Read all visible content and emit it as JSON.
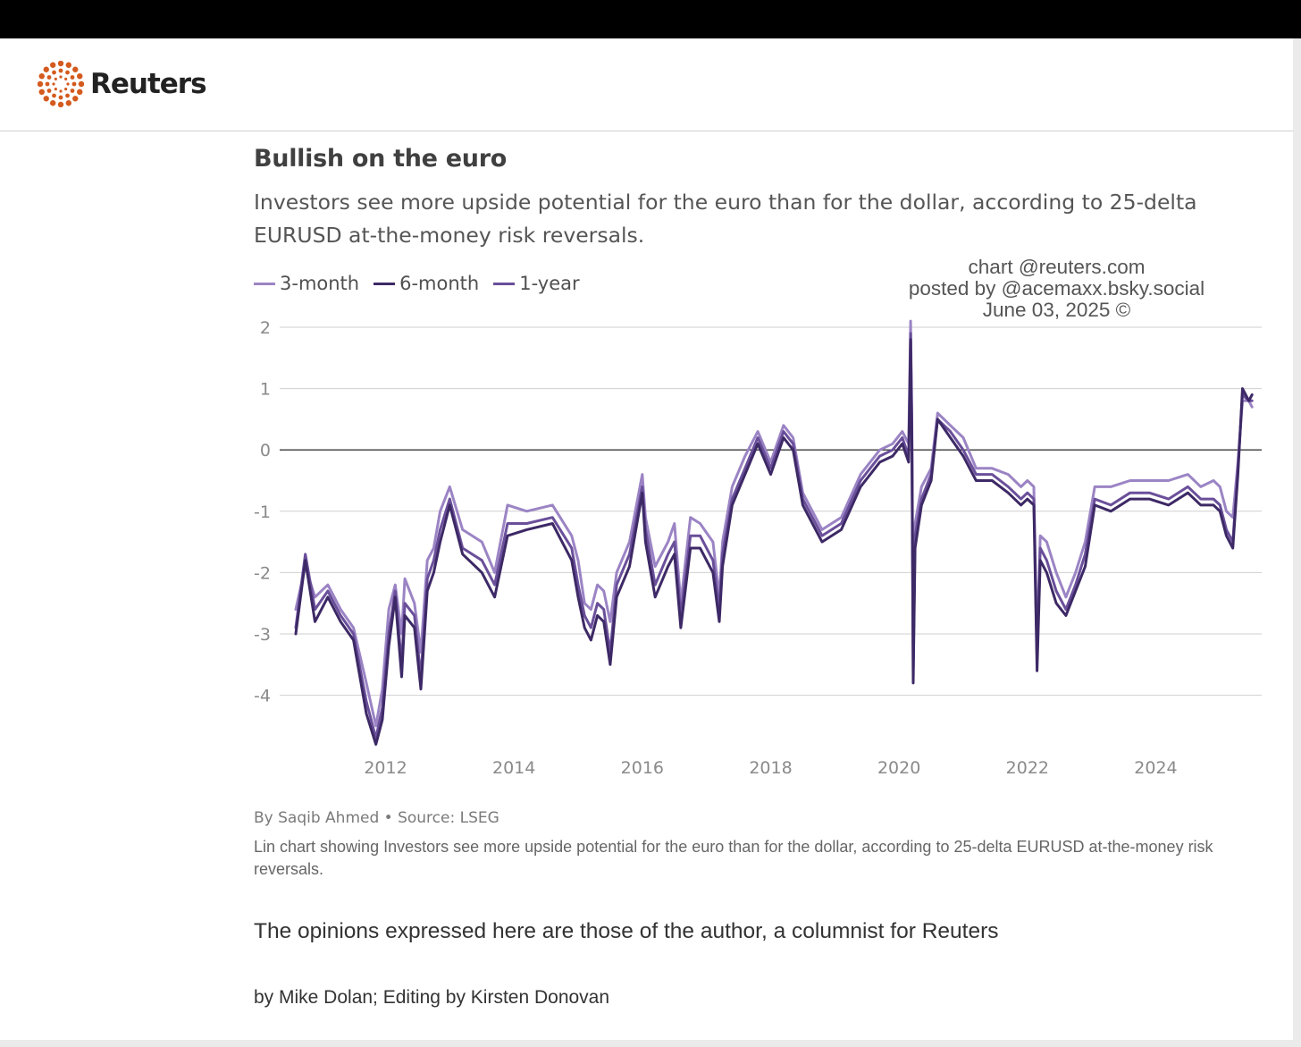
{
  "header": {
    "brand": "Reuters",
    "brand_color": "#d45a1e"
  },
  "chart": {
    "title": "Bullish on the euro",
    "subtitle": "Investors see more upside potential for the euro than for the dollar, according to 25-delta EURUSD at-the-money risk reversals.",
    "legend": [
      {
        "label": "3-month",
        "color": "#9b84c4"
      },
      {
        "label": "6-month",
        "color": "#3d2966"
      },
      {
        "label": "1-year",
        "color": "#6a4f9a"
      }
    ],
    "watermark": [
      "chart @reuters.com",
      "posted by @acemaxx.bsky.social",
      "June 03, 2025 ©"
    ],
    "credit": "By Saqib Ahmed • Source: LSEG",
    "caption": "Lin chart showing Investors see more upside potential for the euro than for the dollar, according to 25-delta EURUSD at-the-money risk reversals."
  },
  "article": {
    "opinion": "The opinions expressed here are those of the author, a columnist for Reuters",
    "byline": "by Mike Dolan; Editing by Kirsten Donovan"
  },
  "chart_data": {
    "type": "line",
    "title": "Bullish on the euro",
    "subtitle": "Investors see more upside potential for the euro than for the dollar, according to 25-delta EURUSD at-the-money risk reversals.",
    "xlabel": "",
    "ylabel": "",
    "xlim": [
      2010.35,
      2025.65
    ],
    "ylim": [
      -5,
      2
    ],
    "yticks": [
      2,
      1,
      0,
      -1,
      -2,
      -3,
      -4
    ],
    "ytick_labels": [
      "2",
      "1",
      "0",
      "-1",
      "-2",
      "-3",
      "-4"
    ],
    "xticks": [
      2012,
      2014,
      2016,
      2018,
      2020,
      2022,
      2024
    ],
    "xtick_labels": [
      "2012",
      "2014",
      "2016",
      "2018",
      "2020",
      "2022",
      "2024"
    ],
    "grid": true,
    "legend_position": "top-left",
    "series": [
      {
        "name": "3-month",
        "color": "#9b84c4",
        "x": [
          2010.6,
          2010.75,
          2010.9,
          2011.1,
          2011.3,
          2011.5,
          2011.7,
          2011.85,
          2011.95,
          2012.05,
          2012.15,
          2012.25,
          2012.3,
          2012.45,
          2012.55,
          2012.65,
          2012.75,
          2012.85,
          2013.0,
          2013.2,
          2013.5,
          2013.7,
          2013.9,
          2014.2,
          2014.6,
          2014.9,
          2015.0,
          2015.1,
          2015.2,
          2015.3,
          2015.4,
          2015.5,
          2015.6,
          2015.8,
          2016.0,
          2016.05,
          2016.2,
          2016.4,
          2016.5,
          2016.6,
          2016.75,
          2016.9,
          2017.1,
          2017.2,
          2017.25,
          2017.4,
          2017.6,
          2017.8,
          2018.0,
          2018.2,
          2018.35,
          2018.5,
          2018.65,
          2018.8,
          2018.95,
          2019.1,
          2019.4,
          2019.7,
          2019.9,
          2020.05,
          2020.15,
          2020.18,
          2020.2,
          2020.22,
          2020.25,
          2020.35,
          2020.5,
          2020.6,
          2020.8,
          2021.0,
          2021.2,
          2021.45,
          2021.7,
          2021.9,
          2022.0,
          2022.1,
          2022.15,
          2022.2,
          2022.3,
          2022.45,
          2022.6,
          2022.75,
          2022.9,
          2023.05,
          2023.3,
          2023.6,
          2023.9,
          2024.2,
          2024.5,
          2024.7,
          2024.9,
          2025.0,
          2025.1,
          2025.2,
          2025.28,
          2025.35,
          2025.45,
          2025.5
        ],
        "y": [
          -2.6,
          -1.9,
          -2.4,
          -2.2,
          -2.6,
          -2.9,
          -3.8,
          -4.5,
          -3.9,
          -2.6,
          -2.2,
          -3.0,
          -2.1,
          -2.5,
          -3.3,
          -1.8,
          -1.6,
          -1.0,
          -0.6,
          -1.3,
          -1.5,
          -2.0,
          -0.9,
          -1.0,
          -0.9,
          -1.4,
          -1.8,
          -2.5,
          -2.6,
          -2.2,
          -2.3,
          -2.8,
          -2.0,
          -1.5,
          -0.4,
          -1.1,
          -1.9,
          -1.5,
          -1.2,
          -2.5,
          -1.1,
          -1.2,
          -1.5,
          -2.4,
          -1.5,
          -0.6,
          -0.1,
          0.3,
          -0.2,
          0.4,
          0.2,
          -0.7,
          -1.0,
          -1.3,
          -1.2,
          -1.1,
          -0.4,
          0.0,
          0.1,
          0.3,
          0.1,
          2.1,
          0.5,
          -3.3,
          -1.2,
          -0.6,
          -0.3,
          0.6,
          0.4,
          0.2,
          -0.3,
          -0.3,
          -0.4,
          -0.6,
          -0.5,
          -0.6,
          -3.2,
          -1.4,
          -1.5,
          -2.0,
          -2.4,
          -2.0,
          -1.5,
          -0.6,
          -0.6,
          -0.5,
          -0.5,
          -0.5,
          -0.4,
          -0.6,
          -0.5,
          -0.6,
          -1.0,
          -1.1,
          -0.2,
          0.8,
          0.8,
          0.7
        ]
      },
      {
        "name": "6-month",
        "color": "#3d2966",
        "x": [
          2010.6,
          2010.75,
          2010.9,
          2011.1,
          2011.3,
          2011.5,
          2011.7,
          2011.85,
          2011.95,
          2012.05,
          2012.15,
          2012.25,
          2012.3,
          2012.45,
          2012.55,
          2012.65,
          2012.75,
          2012.85,
          2013.0,
          2013.2,
          2013.5,
          2013.7,
          2013.9,
          2014.2,
          2014.6,
          2014.9,
          2015.0,
          2015.1,
          2015.2,
          2015.3,
          2015.4,
          2015.5,
          2015.6,
          2015.8,
          2016.0,
          2016.05,
          2016.2,
          2016.4,
          2016.5,
          2016.6,
          2016.75,
          2016.9,
          2017.1,
          2017.2,
          2017.25,
          2017.4,
          2017.6,
          2017.8,
          2018.0,
          2018.2,
          2018.35,
          2018.5,
          2018.65,
          2018.8,
          2018.95,
          2019.1,
          2019.4,
          2019.7,
          2019.9,
          2020.05,
          2020.15,
          2020.18,
          2020.2,
          2020.22,
          2020.25,
          2020.35,
          2020.5,
          2020.6,
          2020.8,
          2021.0,
          2021.2,
          2021.45,
          2021.7,
          2021.9,
          2022.0,
          2022.1,
          2022.15,
          2022.2,
          2022.3,
          2022.45,
          2022.6,
          2022.75,
          2022.9,
          2023.05,
          2023.3,
          2023.6,
          2023.9,
          2024.2,
          2024.5,
          2024.7,
          2024.9,
          2025.0,
          2025.1,
          2025.2,
          2025.28,
          2025.35,
          2025.45,
          2025.5
        ],
        "y": [
          -3.0,
          -1.8,
          -2.8,
          -2.4,
          -2.8,
          -3.1,
          -4.3,
          -4.8,
          -4.4,
          -3.2,
          -2.4,
          -3.7,
          -2.7,
          -2.9,
          -3.9,
          -2.3,
          -2.0,
          -1.5,
          -0.9,
          -1.7,
          -2.0,
          -2.4,
          -1.4,
          -1.3,
          -1.2,
          -1.8,
          -2.4,
          -2.9,
          -3.1,
          -2.7,
          -2.8,
          -3.5,
          -2.4,
          -1.9,
          -0.7,
          -1.5,
          -2.4,
          -1.9,
          -1.7,
          -2.9,
          -1.6,
          -1.6,
          -2.0,
          -2.8,
          -1.9,
          -0.9,
          -0.4,
          0.1,
          -0.4,
          0.2,
          0.0,
          -0.9,
          -1.2,
          -1.5,
          -1.4,
          -1.3,
          -0.6,
          -0.2,
          -0.1,
          0.1,
          -0.2,
          1.8,
          0.2,
          -3.8,
          -1.6,
          -0.9,
          -0.5,
          0.5,
          0.2,
          -0.1,
          -0.5,
          -0.5,
          -0.7,
          -0.9,
          -0.8,
          -0.9,
          -3.6,
          -1.8,
          -2.0,
          -2.5,
          -2.7,
          -2.3,
          -1.9,
          -0.9,
          -1.0,
          -0.8,
          -0.8,
          -0.9,
          -0.7,
          -0.9,
          -0.9,
          -1.0,
          -1.4,
          -1.6,
          -0.4,
          1.0,
          0.8,
          0.9
        ]
      },
      {
        "name": "1-year",
        "color": "#6a4f9a",
        "x": [
          2010.6,
          2010.75,
          2010.9,
          2011.1,
          2011.3,
          2011.5,
          2011.7,
          2011.85,
          2011.95,
          2012.05,
          2012.15,
          2012.25,
          2012.3,
          2012.45,
          2012.55,
          2012.65,
          2012.75,
          2012.85,
          2013.0,
          2013.2,
          2013.5,
          2013.7,
          2013.9,
          2014.2,
          2014.6,
          2014.9,
          2015.0,
          2015.1,
          2015.2,
          2015.3,
          2015.4,
          2015.5,
          2015.6,
          2015.8,
          2016.0,
          2016.05,
          2016.2,
          2016.4,
          2016.5,
          2016.6,
          2016.75,
          2016.9,
          2017.1,
          2017.2,
          2017.25,
          2017.4,
          2017.6,
          2017.8,
          2018.0,
          2018.2,
          2018.35,
          2018.5,
          2018.65,
          2018.8,
          2018.95,
          2019.1,
          2019.4,
          2019.7,
          2019.9,
          2020.05,
          2020.15,
          2020.18,
          2020.2,
          2020.22,
          2020.25,
          2020.35,
          2020.5,
          2020.6,
          2020.8,
          2021.0,
          2021.2,
          2021.45,
          2021.7,
          2021.9,
          2022.0,
          2022.1,
          2022.15,
          2022.2,
          2022.3,
          2022.45,
          2022.6,
          2022.75,
          2022.9,
          2023.05,
          2023.3,
          2023.6,
          2023.9,
          2024.2,
          2024.5,
          2024.7,
          2024.9,
          2025.0,
          2025.1,
          2025.2,
          2025.28,
          2025.35,
          2025.45,
          2025.5
        ],
        "y": [
          -2.9,
          -1.7,
          -2.6,
          -2.3,
          -2.7,
          -3.0,
          -4.1,
          -4.7,
          -4.2,
          -3.0,
          -2.3,
          -3.5,
          -2.5,
          -2.7,
          -3.7,
          -2.1,
          -1.8,
          -1.3,
          -0.8,
          -1.6,
          -1.8,
          -2.2,
          -1.2,
          -1.2,
          -1.1,
          -1.6,
          -2.2,
          -2.7,
          -2.9,
          -2.5,
          -2.6,
          -3.3,
          -2.2,
          -1.7,
          -0.6,
          -1.3,
          -2.2,
          -1.7,
          -1.5,
          -2.7,
          -1.4,
          -1.4,
          -1.8,
          -2.6,
          -1.7,
          -0.8,
          -0.3,
          0.2,
          -0.3,
          0.3,
          0.1,
          -0.8,
          -1.1,
          -1.4,
          -1.3,
          -1.2,
          -0.5,
          -0.1,
          0.0,
          0.2,
          -0.1,
          1.9,
          0.3,
          -3.6,
          -1.4,
          -0.8,
          -0.4,
          0.5,
          0.3,
          0.0,
          -0.4,
          -0.4,
          -0.6,
          -0.8,
          -0.7,
          -0.8,
          -3.4,
          -1.6,
          -1.8,
          -2.3,
          -2.6,
          -2.2,
          -1.7,
          -0.8,
          -0.9,
          -0.7,
          -0.7,
          -0.8,
          -0.6,
          -0.8,
          -0.8,
          -0.9,
          -1.3,
          -1.5,
          -0.3,
          0.9,
          0.8,
          0.8
        ]
      }
    ]
  }
}
